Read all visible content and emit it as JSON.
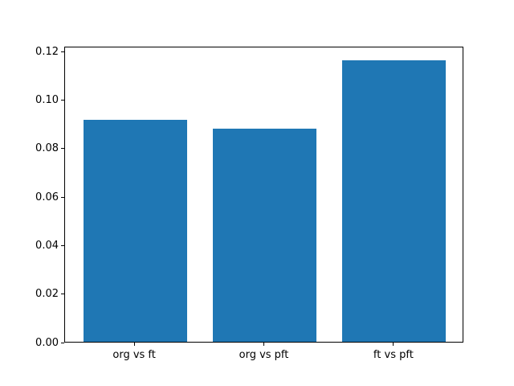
{
  "figure": {
    "background_color": "#ffffff",
    "spine_color": "#000000",
    "tick_color": "#000000"
  },
  "chart_data": {
    "type": "bar",
    "title": "",
    "xlabel": "",
    "ylabel": "",
    "categories": [
      "org vs ft",
      "org vs pft",
      "ft vs pft"
    ],
    "values": [
      0.0915,
      0.0878,
      0.116
    ],
    "bar_color": "#1f77b4",
    "ylim": [
      0,
      0.122
    ],
    "yticks": [
      0.0,
      0.02,
      0.04,
      0.06,
      0.08,
      0.1,
      0.12
    ],
    "ytick_format_decimals": 2,
    "xlim": [
      -0.54,
      2.54
    ],
    "bar_width": 0.8,
    "grid": false,
    "legend": null
  }
}
